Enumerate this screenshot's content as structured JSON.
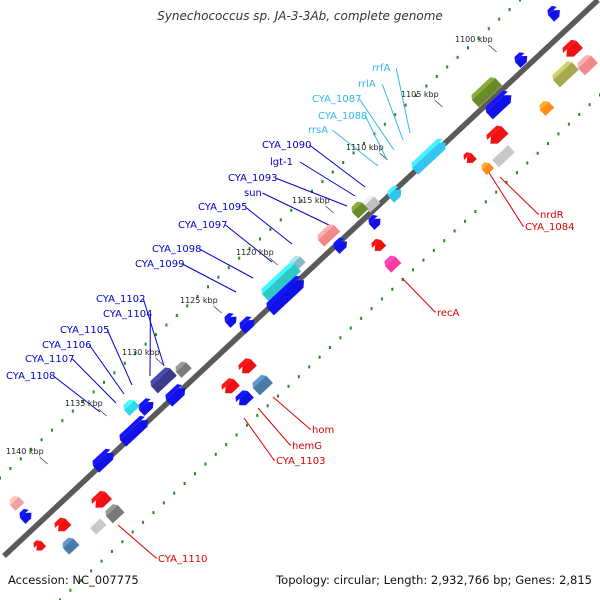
{
  "title": "Synechococcus sp. JA-3-3Ab, complete genome",
  "accession_label": "Accession: NC_007775",
  "topology_label": "Topology: circular; Length: 2,932,766 bp; Genes: 2,815",
  "colors": {
    "backbone": "#7f7f7f",
    "tick": "#1e8c1e",
    "forward_cds": "#1010e8",
    "reverse_cds": "#ee1111",
    "rna": "#33c4f0",
    "label_forward": "#0000cc",
    "label_rna": "#33b8e8",
    "label_reverse": "#dd0000",
    "scale_text": "#222222"
  },
  "scale_labels": [
    "1100 kbp",
    "1105 kbp",
    "1110 kbp",
    "1115 kbp",
    "1120 kbp",
    "1125 kbp",
    "1130 kbp",
    "1135 kbp",
    "1140 kbp"
  ],
  "upper_labels": [
    {
      "text": "rrfA",
      "kind": "rna"
    },
    {
      "text": "rrlA",
      "kind": "rna"
    },
    {
      "text": "CYA_1087",
      "kind": "rna"
    },
    {
      "text": "CYA_1088",
      "kind": "rna"
    },
    {
      "text": "rrsA",
      "kind": "rna"
    },
    {
      "text": "CYA_1090",
      "kind": "forward"
    },
    {
      "text": "lgt-1",
      "kind": "forward"
    },
    {
      "text": "CYA_1093",
      "kind": "forward"
    },
    {
      "text": "sun",
      "kind": "forward"
    },
    {
      "text": "CYA_1095",
      "kind": "forward"
    },
    {
      "text": "CYA_1097",
      "kind": "forward"
    },
    {
      "text": "CYA_1098",
      "kind": "forward"
    },
    {
      "text": "CYA_1099",
      "kind": "forward"
    },
    {
      "text": "CYA_1102",
      "kind": "forward"
    },
    {
      "text": "CYA_1104",
      "kind": "forward"
    },
    {
      "text": "CYA_1105",
      "kind": "forward"
    },
    {
      "text": "CYA_1106",
      "kind": "forward"
    },
    {
      "text": "CYA_1107",
      "kind": "forward"
    },
    {
      "text": "CYA_1108",
      "kind": "forward"
    }
  ],
  "lower_labels": [
    {
      "text": "nrdR",
      "kind": "reverse"
    },
    {
      "text": "CYA_1084",
      "kind": "reverse"
    },
    {
      "text": "recA",
      "kind": "reverse"
    },
    {
      "text": "hom",
      "kind": "reverse"
    },
    {
      "text": "hemG",
      "kind": "reverse"
    },
    {
      "text": "CYA_1103",
      "kind": "reverse"
    },
    {
      "text": "CYA_1110",
      "kind": "reverse"
    }
  ]
}
